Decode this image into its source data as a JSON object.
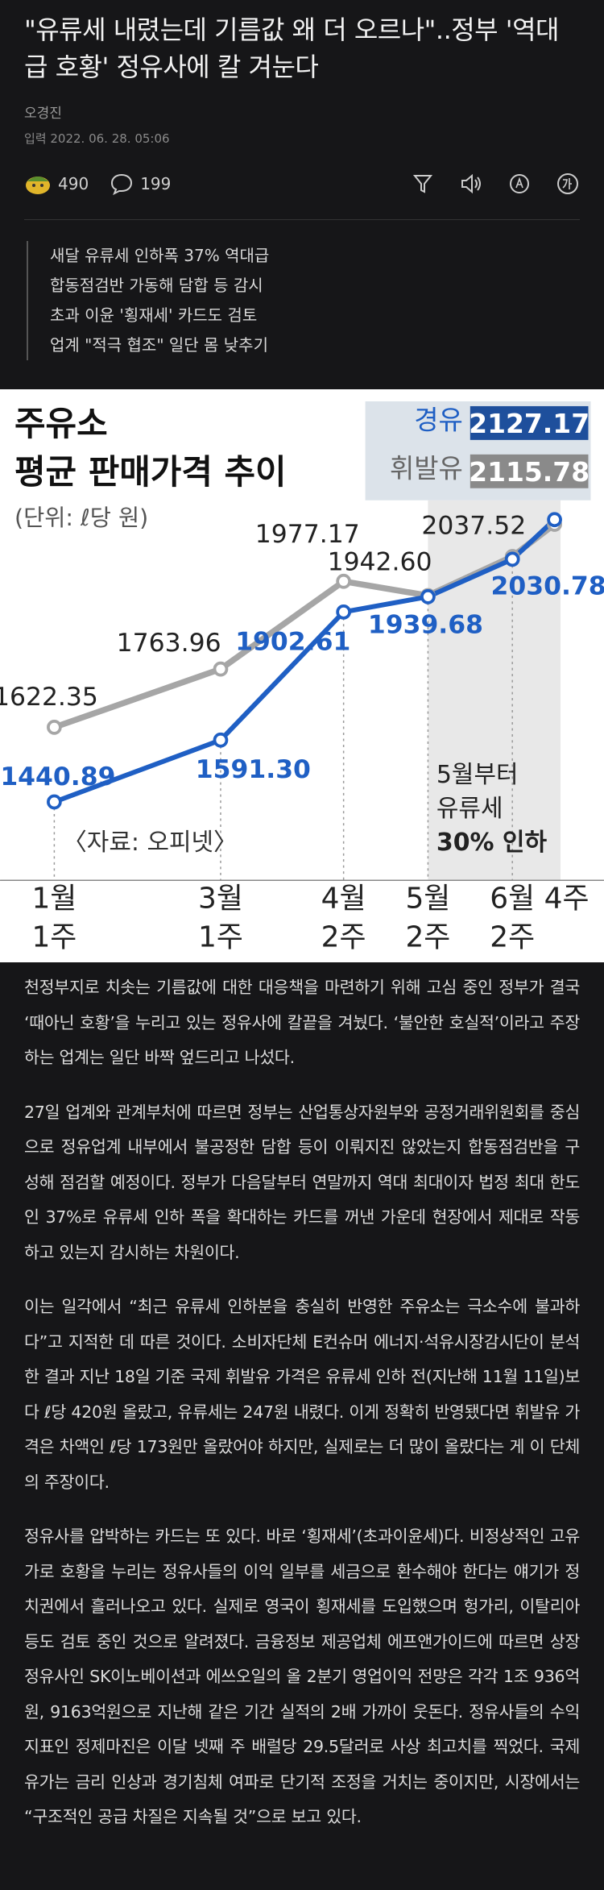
{
  "header": {
    "title": "\"유류세 내렸는데 기름값 왜 더 오르나\"..정부 '역대급 호황' 정유사에 칼 겨눈다",
    "author": "오경진",
    "date": "입력 2022. 06. 28. 05:06",
    "reactions": 490,
    "comments": 199
  },
  "summary": [
    "새달 유류세 인하폭 37% 역대급",
    "합동점검반 가동해 담합 등 감시",
    "초과 이윤 '횡재세' 카드도 검토",
    "업계 \"적극 협조\" 일단 몸 낮추기"
  ],
  "figure": {
    "title": [
      "주유소",
      "평균 판매가격 추이"
    ],
    "unit": "(단위: ℓ당 원)",
    "source": "〈자료: 오피넷〉",
    "note": [
      "5월부터",
      "유류세",
      "30% 인하"
    ],
    "categories": [
      [
        "1월",
        "1주"
      ],
      [
        "3월",
        "1주"
      ],
      [
        "4월",
        "2주"
      ],
      [
        "5월",
        "2주"
      ],
      [
        "6월",
        "2주"
      ],
      [
        "4주"
      ]
    ],
    "series": [
      {
        "name": "휘발유",
        "color": "#a6a6a6",
        "values": [
          1622.35,
          1763.96,
          1977.17,
          1942.6,
          2037.52,
          2115.78
        ],
        "value_labels": [
          "1622.35",
          "1763.96",
          "1977.17",
          "1942.60",
          "2037.52",
          "2115.78"
        ]
      },
      {
        "name": "경유",
        "color": "#1f5fc4",
        "values": [
          1440.89,
          1591.3,
          1902.61,
          1939.68,
          2030.78,
          2127.17
        ],
        "value_labels": [
          "1440.89",
          "1591.30",
          "1902.61",
          "1939.68",
          "2030.78",
          "2127.17"
        ]
      }
    ]
  },
  "paragraphs": [
    "천정부지로 치솟는 기름값에 대한 대응책을 마련하기 위해 고심 중인 정부가 결국 ‘때아닌 호황’을 누리고 있는 정유사에 칼끝을 겨눴다. ‘불안한 호실적’이라고 주장하는 업계는 일단 바짝 엎드리고 나섰다.",
    "27일 업계와 관계부처에 따르면 정부는 산업통상자원부와 공정거래위원회를 중심으로 정유업계 내부에서 불공정한 담합 등이 이뤄지진 않았는지 합동점검반을 구성해 점검할 예정이다. 정부가 다음달부터 연말까지 역대 최대이자 법정 최대 한도인 37%로 유류세 인하 폭을 확대하는 카드를 꺼낸 가운데 현장에서 제대로 작동하고 있는지 감시하는 차원이다.",
    "이는 일각에서 “최근 유류세 인하분을 충실히 반영한 주유소는 극소수에 불과하다”고 지적한 데 따른 것이다. 소비자단체 E컨슈머 에너지·석유시장감시단이 분석한 결과 지난 18일 기준 국제 휘발유 가격은 유류세 인하 전(지난해 11월 11일)보다 ℓ당 420원 올랐고, 유류세는 247원 내렸다. 이게 정확히 반영됐다면 휘발유 가격은 차액인 ℓ당 173원만 올랐어야 하지만, 실제로는 더 많이 올랐다는 게 이 단체의 주장이다.",
    "정유사를 압박하는 카드는 또 있다. 바로 ‘횡재세’(초과이윤세)다. 비정상적인 고유가로 호황을 누리는 정유사들의 이익 일부를 세금으로 환수해야 한다는 얘기가 정치권에서 흘러나오고 있다. 실제로 영국이 횡재세를 도입했으며 헝가리, 이탈리아 등도 검토 중인 것으로 알려졌다. 금융정보 제공업체 에프앤가이드에 따르면 상장 정유사인 SK이노베이션과 에쓰오일의 올 2분기 영업이익 전망은 각각 1조 936억원, 9163억원으로 지난해 같은 기간 실적의 2배 가까이 웃돈다. 정유사들의 수익 지표인 정제마진은 이달 넷째 주 배럴당 29.5달러로 사상 최고치를 찍었다. 국제유가는 금리 인상과 경기침체 여파로 단기적 조정을 거치는 중이지만, 시장에서는 “구조적인 공급 차질은 지속될 것”으로 보고 있다."
  ]
}
